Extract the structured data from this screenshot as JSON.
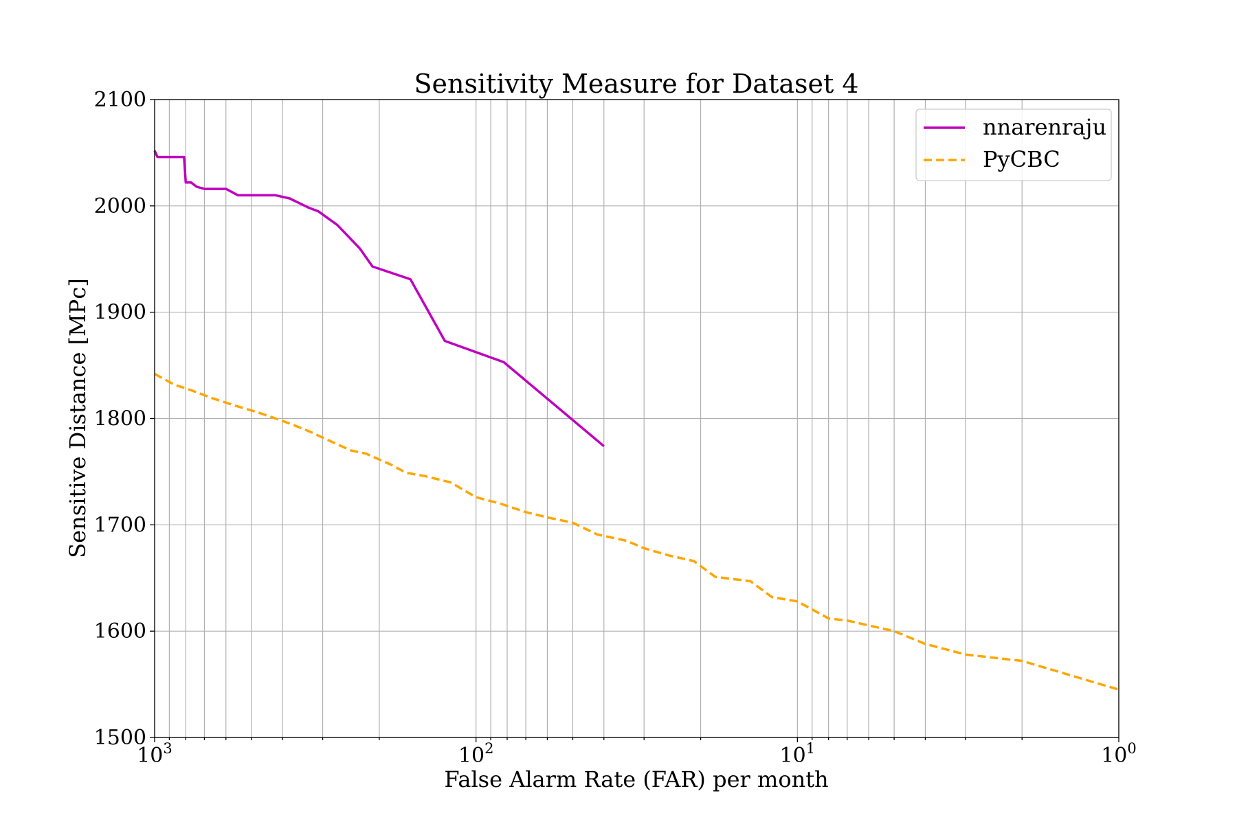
{
  "chart_data": {
    "type": "line",
    "title": "Sensitivity Measure for Dataset 4",
    "xlabel": "False Alarm Rate (FAR) per month",
    "ylabel": "Sensitive Distance [MPc]",
    "x_scale": "log",
    "x_reversed": true,
    "xlim": [
      1000,
      1
    ],
    "ylim": [
      1500,
      2100
    ],
    "x_ticks": [
      {
        "value": 1000,
        "base": "10",
        "exp": "3"
      },
      {
        "value": 100,
        "base": "10",
        "exp": "2"
      },
      {
        "value": 10,
        "base": "10",
        "exp": "1"
      },
      {
        "value": 1,
        "base": "10",
        "exp": "0"
      }
    ],
    "y_ticks": [
      1500,
      1600,
      1700,
      1800,
      1900,
      2000,
      2100
    ],
    "grid": true,
    "legend_position": "top-right",
    "series": [
      {
        "name": "nnarenraju",
        "color": "#BF00BF",
        "style": "solid",
        "x": [
          1000,
          980,
          900,
          810,
          800,
          770,
          740,
          700,
          600,
          550,
          420,
          380,
          330,
          310,
          270,
          230,
          210,
          160,
          125,
          82,
          40
        ],
        "y": [
          2052,
          2046,
          2046,
          2046,
          2022,
          2022,
          2018,
          2016,
          2016,
          2010,
          2010,
          2007,
          1998,
          1995,
          1982,
          1960,
          1943,
          1931,
          1873,
          1853,
          1774
        ]
      },
      {
        "name": "PyCBC",
        "color": "#FFA500",
        "style": "dashed",
        "x": [
          1000,
          870,
          760,
          660,
          560,
          480,
          420,
          370,
          325,
          290,
          245,
          220,
          185,
          165,
          145,
          120,
          100,
          84,
          70,
          60,
          50,
          42,
          34,
          30,
          25,
          21,
          18,
          14,
          12,
          10,
          8,
          7,
          5,
          4,
          3,
          2,
          1
        ],
        "y": [
          1842,
          1832,
          1826,
          1819,
          1812,
          1806,
          1800,
          1794,
          1787,
          1780,
          1770,
          1767,
          1757,
          1749,
          1746,
          1740,
          1726,
          1720,
          1712,
          1707,
          1702,
          1691,
          1685,
          1678,
          1671,
          1666,
          1651,
          1647,
          1632,
          1628,
          1612,
          1610,
          1600,
          1588,
          1578,
          1572,
          1545
        ]
      }
    ]
  }
}
